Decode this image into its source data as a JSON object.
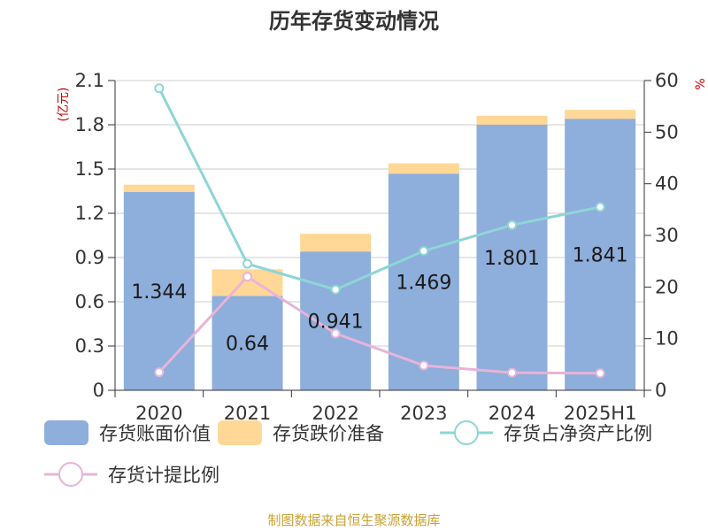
{
  "title": "历年存货变动情况",
  "source": "制图数据来自恒生聚源数据库",
  "left_unit": "(亿元)",
  "right_unit": "%",
  "chart_data": {
    "type": "bar",
    "stacked": true,
    "categories": [
      "2020",
      "2021",
      "2022",
      "2023",
      "2024",
      "2025H1"
    ],
    "series": [
      {
        "name": "存货账面价值",
        "type": "bar",
        "axis": "left",
        "color": "#8eaedb",
        "values": [
          1.344,
          0.64,
          0.941,
          1.469,
          1.801,
          1.841
        ],
        "labels": [
          "1.344",
          "0.64",
          "0.941",
          "1.469",
          "1.801",
          "1.841"
        ]
      },
      {
        "name": "存货跌价准备",
        "type": "bar",
        "axis": "left",
        "color": "#ffd797",
        "values": [
          0.05,
          0.18,
          0.12,
          0.07,
          0.06,
          0.06
        ]
      },
      {
        "name": "存货占净资产比例",
        "type": "line",
        "axis": "right",
        "color": "#8dd6d6",
        "values": [
          58.5,
          24.5,
          19.5,
          27.0,
          32.0,
          35.5
        ]
      },
      {
        "name": "存货计提比例",
        "type": "line",
        "axis": "right",
        "color": "#e8b4d8",
        "values": [
          3.5,
          22.0,
          11.0,
          4.8,
          3.4,
          3.3
        ]
      }
    ],
    "y_left": {
      "range": [
        0,
        2.1
      ],
      "ticks": [
        "0",
        "0.3",
        "0.6",
        "0.9",
        "1.2",
        "1.5",
        "1.8",
        "2.1"
      ]
    },
    "y_right": {
      "range": [
        0,
        60
      ],
      "ticks": [
        "0",
        "10",
        "20",
        "30",
        "40",
        "50",
        "60"
      ]
    },
    "grid": true,
    "legend_position": "bottom"
  }
}
